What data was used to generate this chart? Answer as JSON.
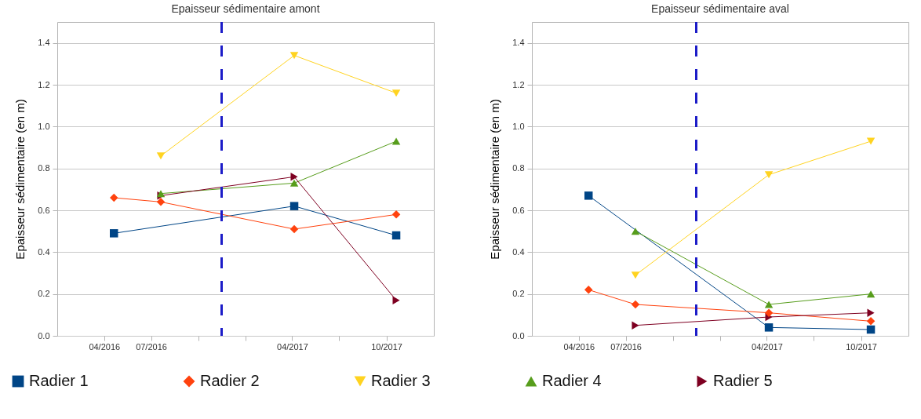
{
  "chart_data": [
    {
      "type": "line",
      "title": "Epaisseur sédimentaire amont",
      "ylabel": "Epaisseur sédimentaire (en m)",
      "xlim": [
        "2016-01-01",
        "2018-01-01"
      ],
      "xticks": [
        {
          "value": "2016-04-01",
          "label": "04/2016"
        },
        {
          "value": "2016-07-01",
          "label": "07/2016"
        },
        {
          "value": "2016-10-01",
          "label": null
        },
        {
          "value": "2017-01-01",
          "label": null
        },
        {
          "value": "2017-04-01",
          "label": "04/2017"
        },
        {
          "value": "2017-07-01",
          "label": null
        },
        {
          "value": "2017-10-01",
          "label": "10/2017"
        }
      ],
      "ylim": [
        0,
        1.5
      ],
      "yticks": [
        {
          "value": 0,
          "label": "0.0"
        },
        {
          "value": 0.2,
          "label": "0.2"
        },
        {
          "value": 0.4,
          "label": "0.4"
        },
        {
          "value": 0.6,
          "label": "0.6"
        },
        {
          "value": 0.8,
          "label": "0.8"
        },
        {
          "value": 1,
          "label": "1.0"
        },
        {
          "value": 1.2,
          "label": "1.2"
        },
        {
          "value": 1.4,
          "label": "1.4"
        }
      ],
      "grid": "y",
      "legend": "bottom",
      "ref_lines": [
        {
          "axis": "x",
          "value": "2016-11-15",
          "color": "#1c1cc8",
          "line_style": "dashed"
        }
      ],
      "series": [
        {
          "name": "Radier 1",
          "color": "#004586",
          "marker": "square",
          "x": [
            "2016-04-20",
            "2017-04-05",
            "2017-10-20"
          ],
          "values": [
            0.49,
            0.62,
            0.48
          ]
        },
        {
          "name": "Radier 2",
          "color": "#ff420e",
          "marker": "diamond",
          "x": [
            "2016-04-20",
            "2016-07-20",
            "2017-04-05",
            "2017-10-20"
          ],
          "values": [
            0.66,
            0.64,
            0.51,
            0.58
          ]
        },
        {
          "name": "Radier 3",
          "color": "#ffd320",
          "marker": "triangle-down",
          "x": [
            "2016-07-20",
            "2017-04-05",
            "2017-10-20"
          ],
          "values": [
            0.86,
            1.34,
            1.16
          ]
        },
        {
          "name": "Radier 4",
          "color": "#579d1c",
          "marker": "triangle-up",
          "x": [
            "2016-07-20",
            "2017-04-05",
            "2017-10-20"
          ],
          "values": [
            0.68,
            0.73,
            0.93
          ]
        },
        {
          "name": "Radier 5",
          "color": "#7e0021",
          "marker": "triangle-right",
          "x": [
            "2016-07-20",
            "2017-04-05",
            "2017-10-20"
          ],
          "values": [
            0.67,
            0.76,
            0.17
          ]
        }
      ]
    },
    {
      "type": "line",
      "title": "Epaisseur sédimentaire aval",
      "ylabel": "Epaisseur sédimentaire (en m)",
      "xlim": [
        "2016-01-01",
        "2018-01-01"
      ],
      "xticks": [
        {
          "value": "2016-04-01",
          "label": "04/2016"
        },
        {
          "value": "2016-07-01",
          "label": "07/2016"
        },
        {
          "value": "2016-10-01",
          "label": null
        },
        {
          "value": "2017-01-01",
          "label": null
        },
        {
          "value": "2017-04-01",
          "label": "04/2017"
        },
        {
          "value": "2017-07-01",
          "label": null
        },
        {
          "value": "2017-10-01",
          "label": "10/2017"
        }
      ],
      "ylim": [
        0,
        1.5
      ],
      "yticks": [
        {
          "value": 0,
          "label": "0.0"
        },
        {
          "value": 0.2,
          "label": "0.2"
        },
        {
          "value": 0.4,
          "label": "0.4"
        },
        {
          "value": 0.6,
          "label": "0.6"
        },
        {
          "value": 0.8,
          "label": "0.8"
        },
        {
          "value": 1,
          "label": "1.0"
        },
        {
          "value": 1.2,
          "label": "1.2"
        },
        {
          "value": 1.4,
          "label": "1.4"
        }
      ],
      "grid": "y",
      "ref_lines": [
        {
          "axis": "x",
          "value": "2016-11-15",
          "color": "#1c1cc8",
          "line_style": "dashed"
        }
      ],
      "series": [
        {
          "color": "#004586",
          "marker": "square",
          "x": [
            "2016-04-20",
            "2017-04-05",
            "2017-10-20"
          ],
          "values": [
            0.67,
            0.04,
            0.03
          ]
        },
        {
          "color": "#ff420e",
          "marker": "diamond",
          "x": [
            "2016-04-20",
            "2016-07-20",
            "2017-04-05",
            "2017-10-20"
          ],
          "values": [
            0.22,
            0.15,
            0.11,
            0.07
          ]
        },
        {
          "color": "#ffd320",
          "marker": "triangle-down",
          "x": [
            "2016-07-20",
            "2017-04-05",
            "2017-10-20"
          ],
          "values": [
            0.29,
            0.77,
            0.93
          ]
        },
        {
          "color": "#579d1c",
          "marker": "triangle-up",
          "x": [
            "2016-07-20",
            "2017-04-05",
            "2017-10-20"
          ],
          "values": [
            0.5,
            0.15,
            0.2
          ]
        },
        {
          "color": "#7e0021",
          "marker": "triangle-right",
          "x": [
            "2016-07-20",
            "2017-04-05",
            "2017-10-20"
          ],
          "values": [
            0.05,
            0.09,
            0.11
          ]
        }
      ]
    }
  ]
}
